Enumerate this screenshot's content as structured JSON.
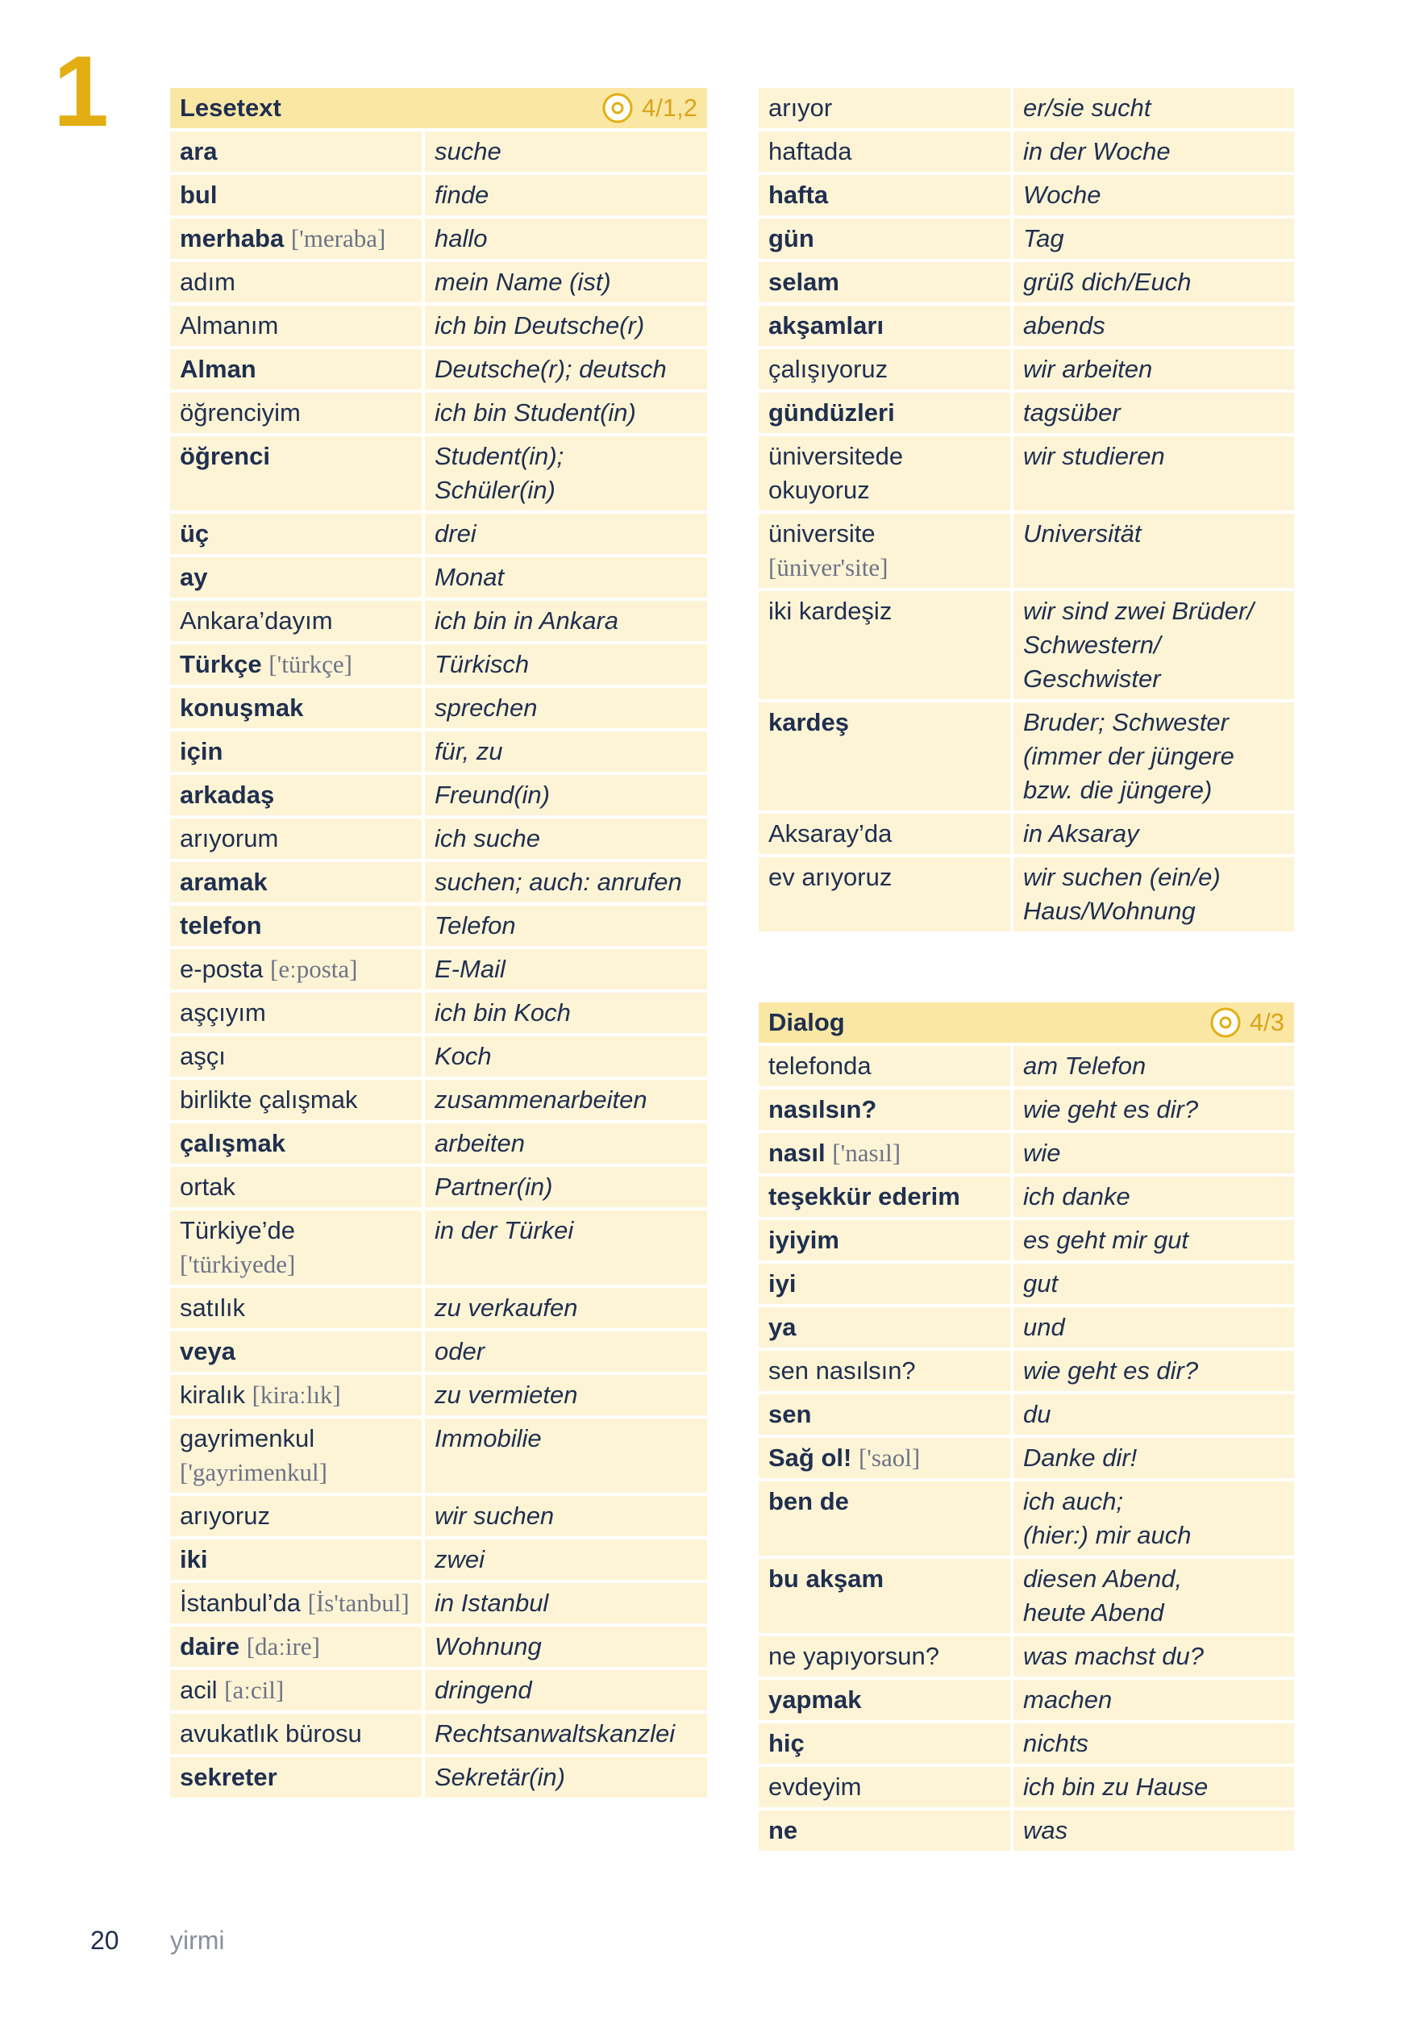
{
  "chapter": "1",
  "lesetext": {
    "title": "Lesetext",
    "track": "4/1,2",
    "rows": [
      {
        "tr": "ara",
        "bold": true,
        "de": [
          "suche"
        ]
      },
      {
        "tr": "bul",
        "bold": true,
        "de": [
          "finde"
        ]
      },
      {
        "tr": "merhaba",
        "pron": "['meraba]",
        "bold": true,
        "de": [
          "hallo"
        ]
      },
      {
        "tr": "adım",
        "bold": false,
        "de": [
          "mein Name (ist)"
        ]
      },
      {
        "tr": "Almanım",
        "bold": false,
        "de": [
          "ich bin Deutsche(r)"
        ]
      },
      {
        "tr": "Alman",
        "bold": true,
        "de": [
          "Deutsche(r); deutsch"
        ]
      },
      {
        "tr": "öğrenciyim",
        "bold": false,
        "de": [
          "ich bin Student(in)"
        ]
      },
      {
        "tr": "öğrenci",
        "bold": true,
        "de": [
          "Student(in);",
          "Schüler(in)"
        ]
      },
      {
        "tr": "üç",
        "bold": true,
        "de": [
          "drei"
        ]
      },
      {
        "tr": "ay",
        "bold": true,
        "de": [
          "Monat"
        ]
      },
      {
        "tr": "Ankara’dayım",
        "bold": false,
        "de": [
          "ich bin in Ankara"
        ]
      },
      {
        "tr": "Türkçe",
        "pron": "['türkçe]",
        "bold": true,
        "de": [
          "Türkisch"
        ]
      },
      {
        "tr": "konuşmak",
        "bold": true,
        "de": [
          "sprechen"
        ]
      },
      {
        "tr": "için",
        "bold": true,
        "de": [
          "für, zu"
        ]
      },
      {
        "tr": "arkadaş",
        "bold": true,
        "de": [
          "Freund(in)"
        ]
      },
      {
        "tr": "arıyorum",
        "bold": false,
        "de": [
          "ich suche"
        ]
      },
      {
        "tr": "aramak",
        "bold": true,
        "de": [
          "suchen; auch: anrufen"
        ]
      },
      {
        "tr": "telefon",
        "bold": true,
        "de": [
          "Telefon"
        ]
      },
      {
        "tr": "e-posta",
        "pron": "[eːposta]",
        "bold": false,
        "de": [
          "E-Mail"
        ]
      },
      {
        "tr": "aşçıyım",
        "bold": false,
        "de": [
          "ich bin Koch"
        ]
      },
      {
        "tr": "aşçı",
        "bold": false,
        "de": [
          "Koch"
        ]
      },
      {
        "tr": "birlikte çalışmak",
        "bold": false,
        "de": [
          "zusammenarbeiten"
        ]
      },
      {
        "tr": "çalışmak",
        "bold": true,
        "de": [
          "arbeiten"
        ]
      },
      {
        "tr": "ortak",
        "bold": false,
        "de": [
          "Partner(in)"
        ]
      },
      {
        "tr": "Türkiye’de",
        "pron": "['türkiyede]",
        "bold": false,
        "de": [
          "in der Türkei"
        ]
      },
      {
        "tr": "satılık",
        "bold": false,
        "de": [
          "zu verkaufen"
        ]
      },
      {
        "tr": "veya",
        "bold": true,
        "de": [
          "oder"
        ]
      },
      {
        "tr": "kiralık",
        "pron": "[kiraːlık]",
        "bold": false,
        "de": [
          "zu vermieten"
        ]
      },
      {
        "tr": "gayrimenkul",
        "pron": "['gayrimenkul]",
        "bold": false,
        "de": [
          "Immobilie"
        ]
      },
      {
        "tr": "arıyoruz",
        "bold": false,
        "de": [
          "wir suchen"
        ]
      },
      {
        "tr": "iki",
        "bold": true,
        "de": [
          "zwei"
        ]
      },
      {
        "tr": "İstanbul’da",
        "pron": "[İs'tanbul]",
        "bold": false,
        "de": [
          "in Istanbul"
        ]
      },
      {
        "tr": "daire",
        "pron": "[daːire]",
        "bold": true,
        "de": [
          "Wohnung"
        ]
      },
      {
        "tr": "acil",
        "pron": "[aːcil]",
        "bold": false,
        "de": [
          "dringend"
        ]
      },
      {
        "tr": "avukatlık bürosu",
        "bold": false,
        "de": [
          "Rechtsanwaltskanzlei"
        ]
      },
      {
        "tr": "sekreter",
        "bold": true,
        "de": [
          "Sekretär(in)"
        ]
      }
    ]
  },
  "continued": {
    "rows": [
      {
        "tr": "arıyor",
        "bold": false,
        "de": [
          "er/sie sucht"
        ]
      },
      {
        "tr": "haftada",
        "bold": false,
        "de": [
          "in der Woche"
        ]
      },
      {
        "tr": "hafta",
        "bold": true,
        "de": [
          "Woche"
        ]
      },
      {
        "tr": "gün",
        "bold": true,
        "de": [
          "Tag"
        ]
      },
      {
        "tr": "selam",
        "bold": true,
        "de": [
          "grüß dich/Euch"
        ]
      },
      {
        "tr": "akşamları",
        "bold": true,
        "de": [
          "abends"
        ]
      },
      {
        "tr": "çalışıyoruz",
        "bold": false,
        "de": [
          "wir arbeiten"
        ]
      },
      {
        "tr": "gündüzleri",
        "bold": true,
        "de": [
          "tagsüber"
        ]
      },
      {
        "tr": "üniversitede okuyoruz",
        "bold": false,
        "de": [
          "wir studieren"
        ]
      },
      {
        "tr": "üniversite",
        "pron": "[üniver'site]",
        "bold": false,
        "de": [
          "Universität"
        ]
      },
      {
        "tr": "iki kardeşiz",
        "bold": false,
        "de": [
          "wir sind zwei Brüder/",
          "Schwestern/",
          "Geschwister"
        ]
      },
      {
        "tr": "kardeş",
        "bold": true,
        "de": [
          "Bruder; Schwester",
          "(immer der jüngere",
          "bzw. die jüngere)"
        ]
      },
      {
        "tr": "Aksaray’da",
        "bold": false,
        "de": [
          "in Aksaray"
        ]
      },
      {
        "tr": "ev arıyoruz",
        "bold": false,
        "de": [
          "wir suchen (ein/e)",
          "Haus/Wohnung"
        ]
      }
    ]
  },
  "dialog": {
    "title": "Dialog",
    "track": "4/3",
    "rows": [
      {
        "tr": "telefonda",
        "bold": false,
        "de": [
          "am Telefon"
        ]
      },
      {
        "tr": "nasılsın?",
        "bold": true,
        "de": [
          "wie geht es dir?"
        ]
      },
      {
        "tr": "nasıl",
        "pron": "['nasıl]",
        "bold": true,
        "de": [
          "wie"
        ]
      },
      {
        "tr": "teşekkür ederim",
        "bold": true,
        "de": [
          "ich danke"
        ]
      },
      {
        "tr": "iyiyim",
        "bold": true,
        "de": [
          "es geht mir gut"
        ]
      },
      {
        "tr": "iyi",
        "bold": true,
        "de": [
          "gut"
        ]
      },
      {
        "tr": "ya",
        "bold": true,
        "de": [
          "und"
        ]
      },
      {
        "tr": "sen nasılsın?",
        "bold": false,
        "de": [
          "wie geht es dir?"
        ]
      },
      {
        "tr": "sen",
        "bold": true,
        "de": [
          "du"
        ]
      },
      {
        "tr": "Sağ ol!",
        "pron": "['saol]",
        "bold": true,
        "de": [
          "Danke dir!"
        ]
      },
      {
        "tr": "ben de",
        "bold": true,
        "de": [
          "ich auch;",
          "(hier:) mir auch"
        ]
      },
      {
        "tr": "bu akşam",
        "bold": true,
        "de": [
          "diesen Abend,",
          "heute Abend"
        ]
      },
      {
        "tr": "ne yapıyorsun?",
        "bold": false,
        "de": [
          "was machst du?"
        ]
      },
      {
        "tr": "yapmak",
        "bold": true,
        "de": [
          "machen"
        ]
      },
      {
        "tr": "hiç",
        "bold": true,
        "de": [
          "nichts"
        ]
      },
      {
        "tr": "evdeyim",
        "bold": false,
        "de": [
          "ich bin zu Hause"
        ]
      },
      {
        "tr": "ne",
        "bold": true,
        "de": [
          "was"
        ]
      }
    ]
  },
  "footer": {
    "page": "20",
    "word": "yirmi"
  }
}
